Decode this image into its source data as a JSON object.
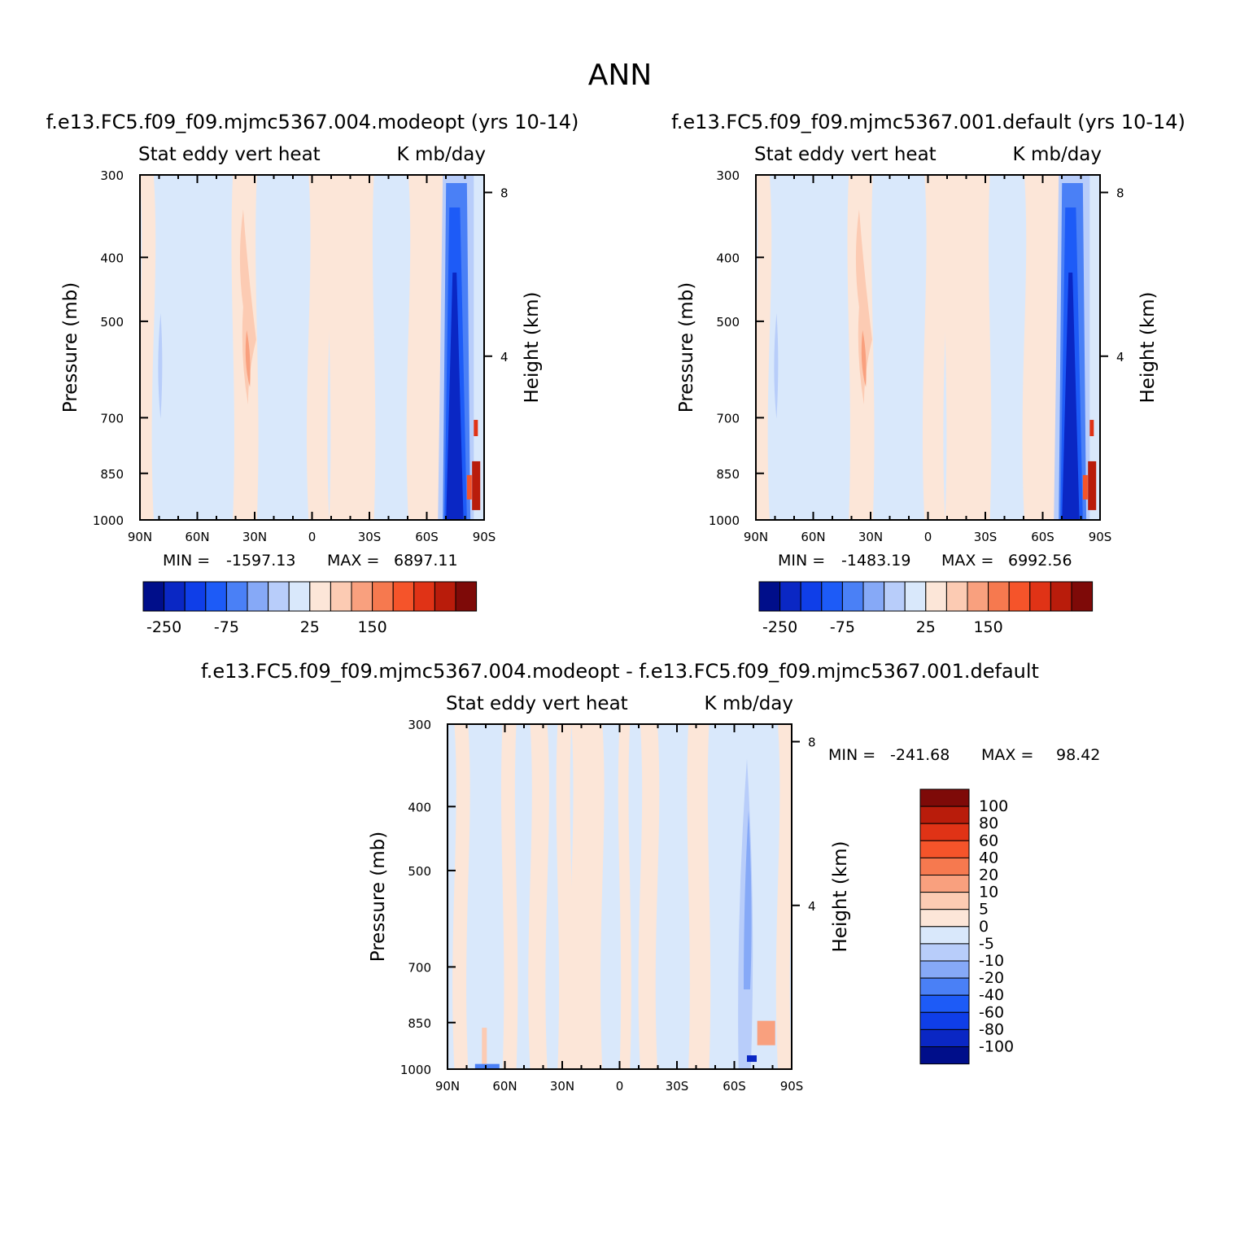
{
  "page_title": "ANN",
  "colors": {
    "palette12": [
      "#000e8a",
      "#0a27c4",
      "#0f3ee8",
      "#1d5bf7",
      "#4a80f6",
      "#86a9f7",
      "#b8cdfa",
      "#d9e8fb",
      "#fce6d8",
      "#fccbb3",
      "#f9a07e",
      "#f6794f",
      "#f5542a",
      "#e03316",
      "#b91c0b",
      "#7e0a08"
    ],
    "palette_diff": [
      "#000e8a",
      "#0a27c4",
      "#0f3ee8",
      "#1d5bf7",
      "#4a80f6",
      "#86a9f7",
      "#b8cdfa",
      "#d9e8fb",
      "#fce6d8",
      "#fccbb3",
      "#f9a07e",
      "#f6794f",
      "#f5542a",
      "#e03316",
      "#b91c0b",
      "#7e0a08"
    ]
  },
  "chart_data": [
    {
      "type": "contour",
      "title": "f.e13.FC5.f09_f09.mjmc5367.004.modeopt (yrs 10-14)",
      "left_label": "Stat eddy vert heat",
      "right_label": "K mb/day",
      "xlabel": "",
      "ylabel": "Pressure (mb)",
      "y2label": "Height (km)",
      "x_ticks": [
        "90N",
        "60N",
        "30N",
        "0",
        "30S",
        "60S",
        "90S"
      ],
      "y_ticks": [
        "300",
        "400",
        "500",
        "700",
        "850",
        "1000"
      ],
      "y_ticks_values": [
        300,
        400,
        500,
        700,
        850,
        1000
      ],
      "y2_ticks": [
        "8",
        "4"
      ],
      "y2_ticks_km": [
        8,
        4
      ],
      "xlim": [
        -90,
        90
      ],
      "ylim": [
        1000,
        300
      ],
      "min_label": "MIN =",
      "min": "-1597.13",
      "max_label": "MAX =",
      "max": "6897.11",
      "colorbar_labels": [
        "-250",
        "-75",
        "25",
        "150"
      ],
      "colorbar_label_boxes": [
        1,
        4,
        8,
        11
      ]
    },
    {
      "type": "contour",
      "title": "f.e13.FC5.f09_f09.mjmc5367.001.default (yrs 10-14)",
      "left_label": "Stat eddy vert heat",
      "right_label": "K mb/day",
      "xlabel": "",
      "ylabel": "Pressure (mb)",
      "y2label": "Height (km)",
      "x_ticks": [
        "90N",
        "60N",
        "30N",
        "0",
        "30S",
        "60S",
        "90S"
      ],
      "y_ticks": [
        "300",
        "400",
        "500",
        "700",
        "850",
        "1000"
      ],
      "y_ticks_values": [
        300,
        400,
        500,
        700,
        850,
        1000
      ],
      "y2_ticks": [
        "8",
        "4"
      ],
      "y2_ticks_km": [
        8,
        4
      ],
      "xlim": [
        -90,
        90
      ],
      "ylim": [
        1000,
        300
      ],
      "min_label": "MIN =",
      "min": "-1483.19",
      "max_label": "MAX =",
      "max": "6992.56",
      "colorbar_labels": [
        "-250",
        "-75",
        "25",
        "150"
      ],
      "colorbar_label_boxes": [
        1,
        4,
        8,
        11
      ]
    },
    {
      "type": "contour",
      "title": "f.e13.FC5.f09_f09.mjmc5367.004.modeopt - f.e13.FC5.f09_f09.mjmc5367.001.default",
      "left_label": "Stat eddy vert heat",
      "right_label": "K mb/day",
      "xlabel": "",
      "ylabel": "Pressure (mb)",
      "y2label": "Height (km)",
      "x_ticks": [
        "90N",
        "60N",
        "30N",
        "0",
        "30S",
        "60S",
        "90S"
      ],
      "y_ticks": [
        "300",
        "400",
        "500",
        "700",
        "850",
        "1000"
      ],
      "y_ticks_values": [
        300,
        400,
        500,
        700,
        850,
        1000
      ],
      "y2_ticks": [
        "8",
        "4"
      ],
      "y2_ticks_km": [
        8,
        4
      ],
      "xlim": [
        -90,
        90
      ],
      "ylim": [
        1000,
        300
      ],
      "min_label": "MIN =",
      "min": "-241.68",
      "max_label": "MAX =",
      "max": "98.42",
      "colorbar_levels": [
        "100",
        "80",
        "60",
        "40",
        "20",
        "10",
        "5",
        "0",
        "-5",
        "-10",
        "-20",
        "-40",
        "-60",
        "-80",
        "-100"
      ]
    }
  ]
}
